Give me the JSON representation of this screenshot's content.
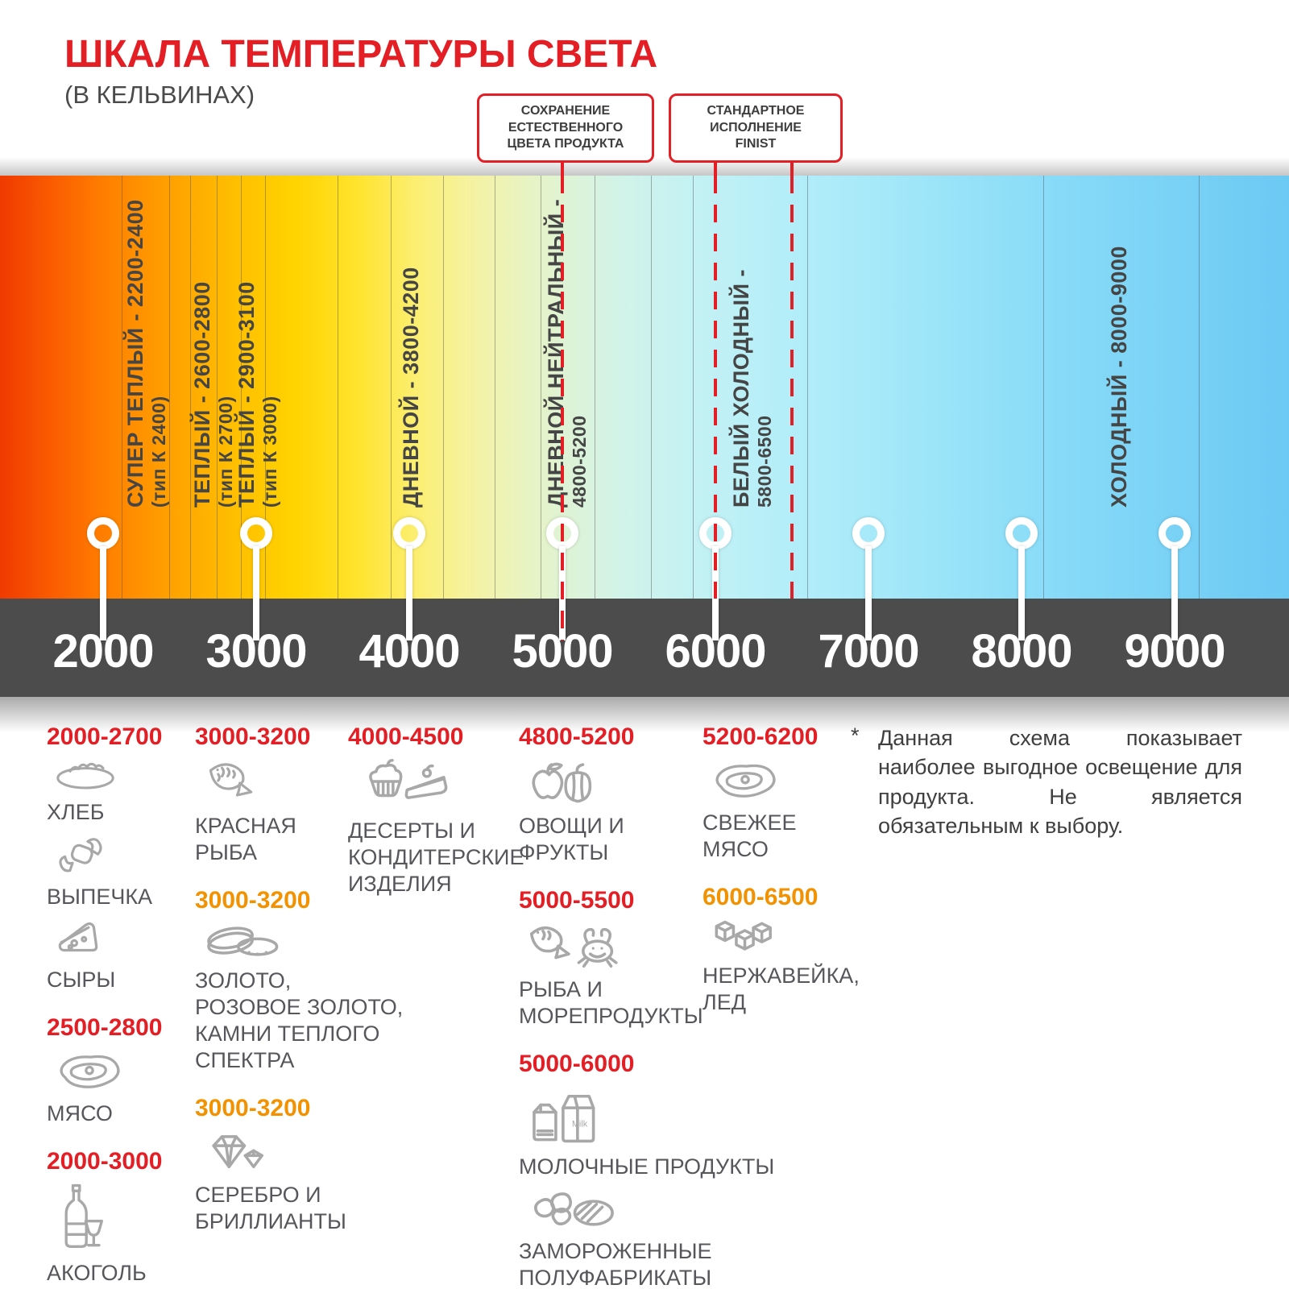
{
  "header": {
    "title": "ШКАЛА ТЕМПЕРАТУРЫ СВЕТА",
    "subtitle": "(В КЕЛЬВИНАХ)"
  },
  "callouts": [
    {
      "name": "natural-color",
      "text": "СОХРАНЕНИЕ\nЕСТЕСТВЕННОГО\nЦВЕТА ПРОДУКТА",
      "targets_k": [
        5000
      ]
    },
    {
      "name": "finist-standard",
      "text": "СТАНДАРТНОЕ\nИСПОЛНЕНИЕ\nFINIST",
      "targets_k": [
        6000,
        6500
      ]
    }
  ],
  "scale": {
    "unit": "K",
    "min": 2000,
    "max": 9000,
    "ticks": [
      2000,
      3000,
      4000,
      5000,
      6000,
      7000,
      8000,
      9000
    ],
    "zones": [
      {
        "label": "СУПЕР ТЕПЛЫЙ  - 2200-2400",
        "sub": "(тип К 2400)",
        "k": 2130
      },
      {
        "label": "ТЕПЛЫЙ - 2600-2800",
        "sub": "(тип К 2700)",
        "k": 2570
      },
      {
        "label": "ТЕПЛЫЙ - 2900-3100",
        "sub": "(тип К 3000)",
        "k": 2860
      },
      {
        "label": "ДНЕВНОЙ  - 3800-4200",
        "sub": "",
        "k": 3930
      },
      {
        "label": "ДНЕВНОЙ НЕЙТРАЛЬНЫЙ -",
        "sub": "4800-5200",
        "k": 4880
      },
      {
        "label": "БЕЛЫЙ ХОЛОДНЫЙ -",
        "sub": "5800-6500",
        "k": 6090
      },
      {
        "label": "ХОЛОДНЫЙ  - 8000-9000",
        "sub": "",
        "k": 8560
      }
    ],
    "gridlines_k": [
      2120,
      2430,
      2570,
      2740,
      2900,
      3060,
      3530,
      3880,
      4220,
      4560,
      4860,
      5210,
      5580,
      5850,
      6600,
      8140,
      9160
    ],
    "marker_lines": [
      {
        "k": 5000,
        "into_band": true
      },
      {
        "k": 6000,
        "into_band": false
      },
      {
        "k": 6500,
        "into_band": false
      }
    ]
  },
  "categories": [
    {
      "column": 1,
      "range": "2000-2700",
      "color": "red",
      "items": [
        {
          "icon": "bread-icon",
          "label": "ХЛЕБ"
        },
        {
          "icon": "croissant-icon",
          "label": "ВЫПЕЧКА"
        },
        {
          "icon": "cheese-icon",
          "label": "СЫРЫ"
        }
      ]
    },
    {
      "column": 1,
      "range": "2500-2800",
      "color": "red",
      "items": [
        {
          "icon": "meat-icon",
          "label": "МЯСО"
        }
      ]
    },
    {
      "column": 1,
      "range": "2000-3000",
      "color": "red",
      "items": [
        {
          "icon": "alcohol-icon",
          "label": "АКОГОЛЬ"
        }
      ]
    },
    {
      "column": 2,
      "range": "3000-3200",
      "color": "red",
      "items": [
        {
          "icon": "fish-icon",
          "label": "КРАСНАЯ\nРЫБА"
        }
      ]
    },
    {
      "column": 2,
      "range": "3000-3200",
      "color": "orange",
      "items": [
        {
          "icon": "rings-icon",
          "label": "ЗОЛОТО,\nРОЗОВОЕ ЗОЛОТО,\nКАМНИ ТЕПЛОГО\nСПЕКТРА"
        }
      ]
    },
    {
      "column": 2,
      "range": "3000-3200",
      "color": "orange",
      "items": [
        {
          "icon": "diamond-icon",
          "label": "СЕРЕБРО И\nБРИЛЛИАНТЫ"
        }
      ]
    },
    {
      "column": 3,
      "range": "4000-4500",
      "color": "red",
      "items": [
        {
          "icon": "dessert-icon",
          "label": "ДЕСЕРТЫ И\nКОНДИТЕРСКИЕ\nИЗДЕЛИЯ"
        }
      ]
    },
    {
      "column": 4,
      "range": "4800-5200",
      "color": "red",
      "items": [
        {
          "icon": "vegetables-icon",
          "label": "ОВОЩИ И\nФРУКТЫ"
        }
      ]
    },
    {
      "column": 4,
      "range": "5000-5500",
      "color": "red",
      "items": [
        {
          "icon": "seafood-icon",
          "label": "РЫБА И\nМОРЕПРОДУКТЫ"
        }
      ]
    },
    {
      "column": 4,
      "range": "5000-6000",
      "color": "red",
      "items": [
        {
          "icon": "milk-icon",
          "label": "МОЛОЧНЫЕ ПРОДУКТЫ"
        },
        {
          "icon": "frozen-icon",
          "label": "ЗАМОРОЖЕННЫЕ\nПОЛУФАБРИКАТЫ"
        }
      ]
    },
    {
      "column": 5,
      "range": "5200-6200",
      "color": "red",
      "items": [
        {
          "icon": "fresh-meat-icon",
          "label": "СВЕЖЕЕ\nМЯСО"
        }
      ]
    },
    {
      "column": 5,
      "range": "6000-6500",
      "color": "orange",
      "items": [
        {
          "icon": "ice-icon",
          "label": "НЕРЖАВЕЙКА,\nЛЕД"
        }
      ]
    }
  ],
  "footnote": {
    "symbol": "*",
    "text": "Данная схема показывает наиболее выгодное освещение для продукта. Не является обязательным к выбору."
  },
  "colors": {
    "accent_red": "#e31e24",
    "accent_orange": "#f39200",
    "band_dark": "#4c4c4c",
    "icon_gray": "#a8a8a8",
    "text_gray": "#57575b",
    "gradient": [
      {
        "c": "#ef3a00",
        "p": 0
      },
      {
        "c": "#fa5c00",
        "p": 4
      },
      {
        "c": "#ff7e00",
        "p": 8
      },
      {
        "c": "#ffa000",
        "p": 13
      },
      {
        "c": "#ffbe00",
        "p": 18
      },
      {
        "c": "#ffd400",
        "p": 23
      },
      {
        "c": "#ffe431",
        "p": 28
      },
      {
        "c": "#fcee6e",
        "p": 32
      },
      {
        "c": "#f6f29c",
        "p": 36
      },
      {
        "c": "#ebf3bd",
        "p": 40
      },
      {
        "c": "#def3d6",
        "p": 44
      },
      {
        "c": "#d2f3e8",
        "p": 48
      },
      {
        "c": "#c8f2f1",
        "p": 52
      },
      {
        "c": "#bdf0f7",
        "p": 57
      },
      {
        "c": "#b2edf9",
        "p": 62
      },
      {
        "c": "#a6e9f9",
        "p": 68
      },
      {
        "c": "#96e2f8",
        "p": 75
      },
      {
        "c": "#88dbf8",
        "p": 82
      },
      {
        "c": "#7bd3f6",
        "p": 90
      },
      {
        "c": "#6cc9f3",
        "p": 100
      }
    ]
  }
}
